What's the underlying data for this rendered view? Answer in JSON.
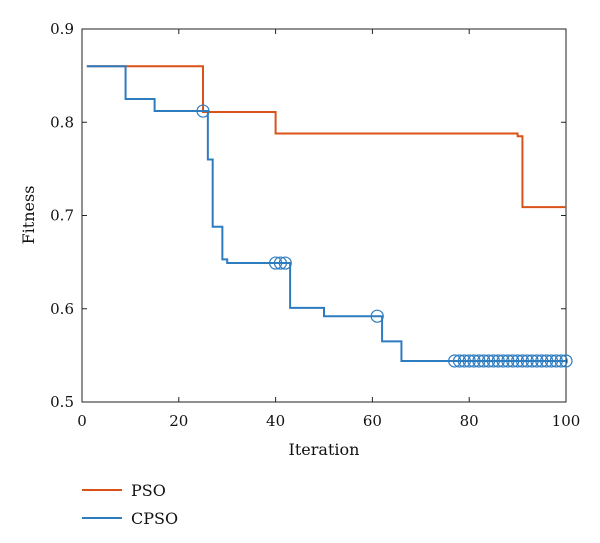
{
  "chart_data": {
    "type": "line",
    "title": "",
    "xlabel": "Iteration",
    "ylabel": "Fitness",
    "xlim": [
      0,
      100
    ],
    "ylim": [
      0.5,
      0.9
    ],
    "xticks": [
      0,
      20,
      40,
      60,
      80,
      100
    ],
    "yticks": [
      0.5,
      0.6,
      0.7,
      0.8,
      0.9
    ],
    "xtick_labels": [
      "0",
      "20",
      "40",
      "60",
      "80",
      "100"
    ],
    "ytick_labels": [
      "0.5",
      "0.6",
      "0.7",
      "0.8",
      "0.9"
    ],
    "grid": false,
    "legend_position": "bottom-left",
    "series": [
      {
        "name": "PSO",
        "color": "#d95319",
        "step": true,
        "x": [
          1,
          25,
          39,
          40,
          89,
          90,
          91,
          100
        ],
        "y": [
          0.86,
          0.811,
          0.811,
          0.788,
          0.788,
          0.785,
          0.709,
          0.709
        ]
      },
      {
        "name": "CPSO",
        "color": "#2e7cc0",
        "step": true,
        "x": [
          1,
          8,
          9,
          14,
          15,
          25,
          26,
          27,
          28,
          29,
          30,
          42,
          43,
          49,
          50,
          61,
          62,
          65,
          66,
          77,
          100
        ],
        "y": [
          0.86,
          0.86,
          0.825,
          0.825,
          0.812,
          0.812,
          0.76,
          0.688,
          0.688,
          0.653,
          0.649,
          0.649,
          0.601,
          0.601,
          0.592,
          0.592,
          0.565,
          0.565,
          0.544,
          0.544,
          0.544
        ],
        "markers": {
          "style": "circle",
          "x": [
            25,
            40,
            41,
            42,
            61,
            77,
            78,
            79,
            80,
            81,
            82,
            83,
            84,
            85,
            86,
            87,
            88,
            89,
            90,
            91,
            92,
            93,
            94,
            95,
            96,
            97,
            98,
            99,
            100
          ],
          "y": [
            0.812,
            0.649,
            0.649,
            0.649,
            0.592,
            0.544,
            0.544,
            0.544,
            0.544,
            0.544,
            0.544,
            0.544,
            0.544,
            0.544,
            0.544,
            0.544,
            0.544,
            0.544,
            0.544,
            0.544,
            0.544,
            0.544,
            0.544,
            0.544,
            0.544,
            0.544,
            0.544,
            0.544,
            0.544
          ]
        }
      }
    ]
  }
}
